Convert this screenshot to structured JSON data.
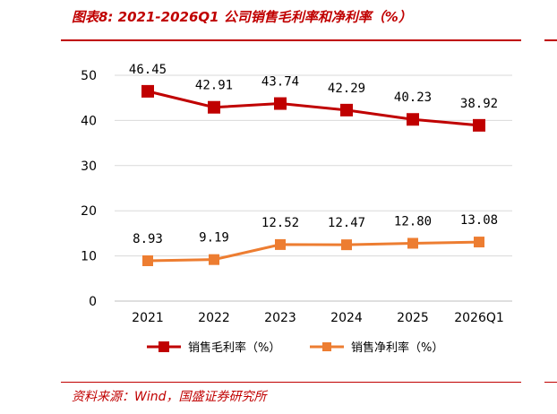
{
  "header": {
    "title": "图表8:  2021-2026Q1 公司销售毛利率和净利率（%）"
  },
  "footer": {
    "source": "资料来源：Wind，国盛证券研究所"
  },
  "chart_data": {
    "type": "line",
    "categories": [
      "2021",
      "2022",
      "2023",
      "2024",
      "2025",
      "2026Q1"
    ],
    "series": [
      {
        "name": "销售毛利率（%）",
        "values": [
          46.45,
          42.91,
          43.74,
          42.29,
          40.23,
          38.92
        ],
        "labels": [
          "46.45",
          "42.91",
          "43.74",
          "42.29",
          "40.23",
          "38.92"
        ],
        "color": "#c00000"
      },
      {
        "name": "销售净利率（%）",
        "values": [
          8.93,
          9.19,
          12.52,
          12.47,
          12.8,
          13.08
        ],
        "labels": [
          "8.93",
          "9.19",
          "12.52",
          "12.47",
          "12.80",
          "13.08"
        ],
        "color": "#ed7d31"
      }
    ],
    "yticks": [
      0,
      10,
      20,
      30,
      40,
      50
    ],
    "ylim": [
      0,
      50
    ],
    "grid": true,
    "legend": "bottom"
  }
}
